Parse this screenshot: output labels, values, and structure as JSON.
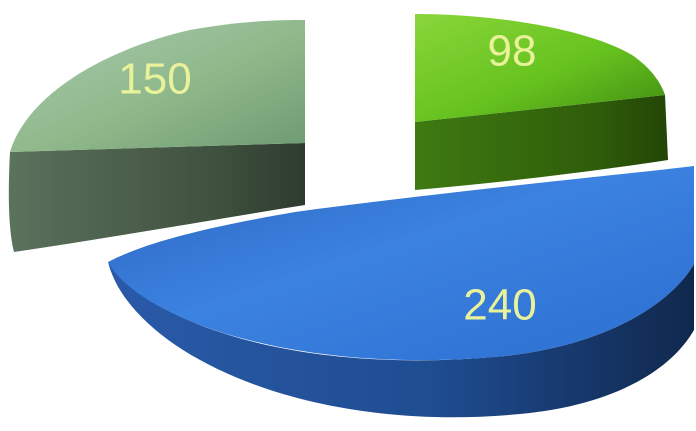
{
  "chart_data": {
    "type": "pie",
    "title": "",
    "categories": [
      "",
      "",
      ""
    ],
    "values": [
      240,
      150,
      98
    ],
    "data_labels": [
      "240",
      "150",
      "98"
    ],
    "colors": [
      "#2f6fc2",
      "#8fb88a",
      "#66c21f"
    ],
    "style": "3d-exploded",
    "legend": "none"
  }
}
